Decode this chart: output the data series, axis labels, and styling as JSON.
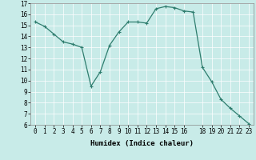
{
  "x": [
    0,
    1,
    2,
    3,
    4,
    5,
    6,
    7,
    8,
    9,
    10,
    11,
    12,
    13,
    14,
    15,
    16,
    17,
    18,
    19,
    20,
    21,
    22,
    23
  ],
  "y": [
    15.3,
    14.9,
    14.2,
    13.5,
    13.3,
    13.0,
    9.5,
    10.8,
    13.2,
    14.4,
    15.3,
    15.3,
    15.2,
    16.5,
    16.7,
    16.6,
    16.3,
    16.2,
    11.2,
    9.9,
    8.3,
    7.5,
    6.8,
    6.1
  ],
  "line_color": "#2e7d6e",
  "marker": "+",
  "marker_size": 3,
  "marker_linewidth": 0.8,
  "bg_color": "#c8ebe8",
  "grid_color": "#ffffff",
  "xlabel": "Humidex (Indice chaleur)",
  "ylim": [
    6,
    17
  ],
  "xlim": [
    -0.5,
    23.5
  ],
  "yticks": [
    6,
    7,
    8,
    9,
    10,
    11,
    12,
    13,
    14,
    15,
    16,
    17
  ],
  "xticks": [
    0,
    1,
    2,
    3,
    4,
    5,
    6,
    7,
    8,
    9,
    10,
    11,
    12,
    13,
    14,
    15,
    16,
    18,
    19,
    20,
    21,
    22,
    23
  ],
  "xtick_labels": [
    "0",
    "1",
    "2",
    "3",
    "4",
    "5",
    "6",
    "7",
    "8",
    "9",
    "10",
    "11",
    "12",
    "13",
    "14",
    "15",
    "16",
    "18",
    "19",
    "20",
    "21",
    "22",
    "23"
  ],
  "tick_fontsize": 5.5,
  "xlabel_fontsize": 6.5,
  "linewidth": 0.9
}
